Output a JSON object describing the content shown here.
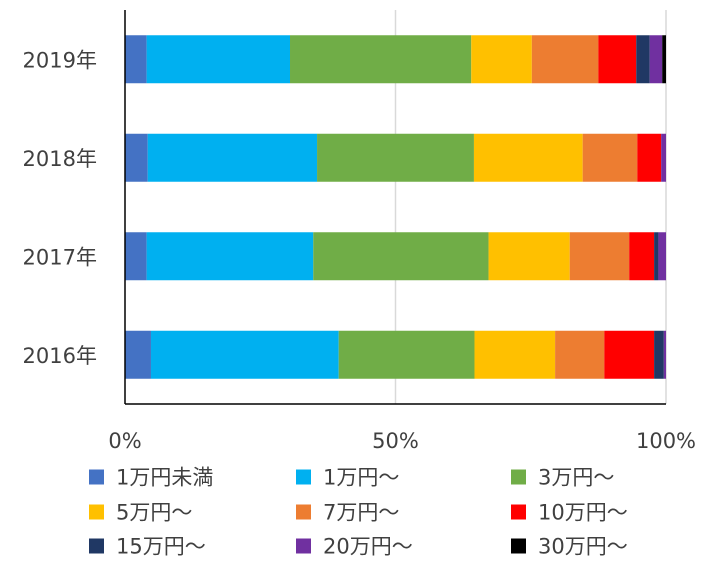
{
  "chart_data": {
    "type": "bar",
    "orientation": "horizontal",
    "stacked": "percent",
    "categories": [
      "2019年",
      "2018年",
      "2017年",
      "2016年"
    ],
    "series": [
      {
        "name": "1万円未満",
        "color": "#4472C4",
        "values": [
          4.0,
          4.2,
          4.0,
          4.8
        ]
      },
      {
        "name": "1万円〜",
        "color": "#00B0F0",
        "values": [
          26.5,
          31.3,
          30.8,
          34.7
        ]
      },
      {
        "name": "3万円〜",
        "color": "#70AD47",
        "values": [
          33.5,
          29.0,
          32.4,
          25.1
        ]
      },
      {
        "name": "5万円〜",
        "color": "#FFC000",
        "values": [
          11.2,
          20.1,
          15.0,
          14.9
        ]
      },
      {
        "name": "7万円〜",
        "color": "#ED7D31",
        "values": [
          12.3,
          10.1,
          11.0,
          9.1
        ]
      },
      {
        "name": "10万円〜",
        "color": "#FF0000",
        "values": [
          7.0,
          4.4,
          4.6,
          9.2
        ]
      },
      {
        "name": "15万円〜",
        "color": "#203864",
        "values": [
          2.5,
          0.0,
          0.8,
          1.8
        ]
      },
      {
        "name": "20万円〜",
        "color": "#7030A0",
        "values": [
          2.3,
          0.9,
          1.4,
          0.4
        ]
      },
      {
        "name": "30万円〜",
        "color": "#000000",
        "values": [
          0.7,
          0.0,
          0.0,
          0.0
        ]
      }
    ],
    "xlim": [
      0,
      100
    ],
    "xticks": [
      "0%",
      "50%",
      "100%"
    ],
    "xlabel": "",
    "ylabel": "",
    "grid": "vertical",
    "legend_position": "bottom"
  }
}
